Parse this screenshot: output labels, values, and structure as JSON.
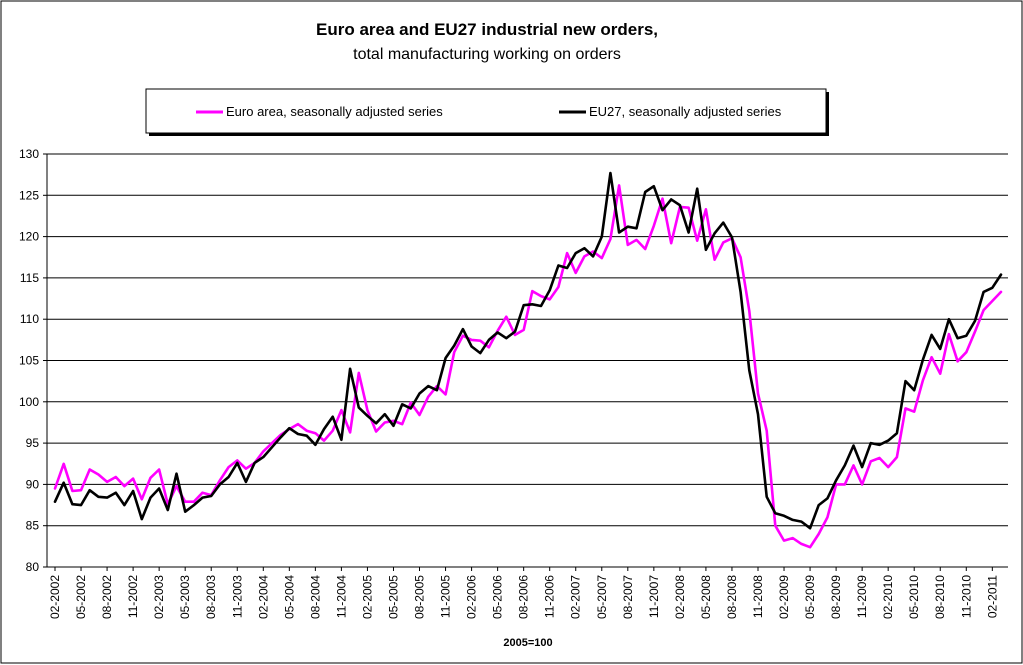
{
  "chart_data": {
    "type": "line",
    "title": "Euro area and EU27 industrial new orders,",
    "subtitle": "total manufacturing working on orders",
    "xlabel": "2005=100",
    "ylabel": "",
    "ylim": [
      80,
      130
    ],
    "yticks": [
      "80",
      "85",
      "90",
      "95",
      "100",
      "105",
      "110",
      "115",
      "120",
      "125",
      "130"
    ],
    "x_tick_labels": [
      "02-2002",
      "05-2002",
      "08-2002",
      "11-2002",
      "02-2003",
      "05-2003",
      "08-2003",
      "11-2003",
      "02-2004",
      "05-2004",
      "08-2004",
      "11-2004",
      "02-2005",
      "05-2005",
      "08-2005",
      "11-2005",
      "02-2006",
      "05-2006",
      "08-2006",
      "11-2006",
      "02-2007",
      "05-2007",
      "08-2007",
      "11-2007",
      "02-2008",
      "05-2008",
      "08-2008",
      "11-2008",
      "02-2009",
      "05-2009",
      "08-2009",
      "11-2009",
      "02-2010",
      "05-2010",
      "08-2010",
      "11-2010",
      "02-2011"
    ],
    "grid": true,
    "legend_position": "top",
    "series": [
      {
        "name": "Euro area, seasonally adjusted series",
        "color": "#ff00ff",
        "values": [
          89.5,
          92.5,
          89.2,
          89.3,
          91.8,
          91.2,
          90.3,
          90.9,
          89.8,
          90.7,
          88.2,
          90.8,
          91.8,
          87.6,
          89.8,
          87.9,
          87.9,
          89.0,
          88.7,
          90.5,
          92.1,
          92.9,
          91.9,
          92.6,
          94.0,
          95.0,
          96.0,
          96.7,
          97.3,
          96.5,
          96.2,
          95.3,
          96.5,
          99.0,
          96.3,
          103.5,
          99.0,
          96.4,
          97.5,
          97.7,
          97.3,
          99.9,
          98.4,
          100.6,
          101.9,
          100.9,
          106.0,
          108.0,
          107.5,
          107.4,
          106.6,
          108.6,
          110.3,
          108.1,
          108.7,
          113.4,
          112.8,
          112.4,
          113.9,
          118.0,
          115.6,
          117.6,
          118.2,
          117.4,
          119.7,
          126.2,
          119.0,
          119.6,
          118.5,
          121.3,
          124.6,
          119.2,
          123.6,
          123.5,
          119.5,
          123.3,
          117.2,
          119.3,
          119.8,
          117.5,
          111.0,
          101.0,
          96.5,
          85.0,
          83.2,
          83.5,
          82.8,
          82.4,
          84.0,
          86.0,
          90.0,
          90.0,
          92.3,
          90.0,
          92.8,
          93.2,
          92.1,
          93.3,
          99.2,
          98.8,
          102.6,
          105.4,
          103.4,
          108.2,
          104.9,
          106.0,
          108.5,
          111.1,
          112.2,
          113.3
        ]
      },
      {
        "name": "EU27, seasonally adjusted series",
        "color": "#000000",
        "values": [
          87.9,
          90.2,
          87.6,
          87.5,
          89.3,
          88.5,
          88.4,
          89.0,
          87.5,
          89.2,
          85.8,
          88.4,
          89.5,
          86.9,
          91.3,
          86.7,
          87.5,
          88.4,
          88.6,
          90.0,
          90.9,
          92.6,
          90.3,
          92.6,
          93.3,
          94.5,
          95.7,
          96.8,
          96.1,
          95.9,
          94.8,
          96.7,
          98.2,
          95.4,
          104.0,
          99.3,
          98.3,
          97.4,
          98.5,
          97.1,
          99.7,
          99.2,
          101.0,
          101.9,
          101.4,
          105.3,
          106.8,
          108.8,
          106.7,
          105.9,
          107.5,
          108.4,
          107.7,
          108.5,
          111.7,
          111.8,
          111.6,
          113.5,
          116.5,
          116.2,
          118.0,
          118.6,
          117.6,
          120.0,
          127.7,
          120.5,
          121.2,
          121.0,
          125.4,
          126.1,
          123.2,
          124.5,
          123.8,
          120.5,
          125.8,
          118.4,
          120.4,
          121.7,
          119.9,
          113.3,
          103.8,
          98.5,
          88.5,
          86.5,
          86.2,
          85.7,
          85.5,
          84.7,
          87.5,
          88.3,
          90.5,
          92.3,
          94.7,
          92.1,
          95.0,
          94.8,
          95.3,
          96.2,
          102.5,
          101.4,
          105.1,
          108.1,
          106.4,
          110.0,
          107.7,
          108.0,
          109.8,
          113.3,
          113.8,
          115.4
        ]
      }
    ]
  }
}
